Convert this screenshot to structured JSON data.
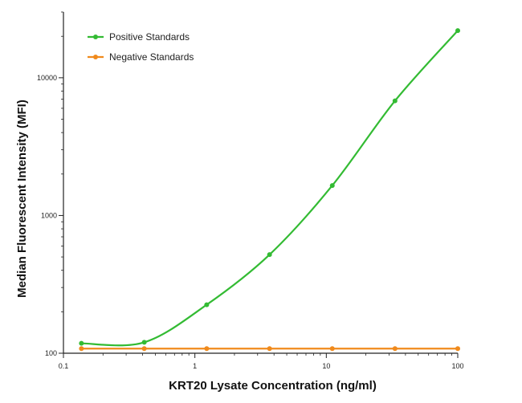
{
  "chart_data": {
    "type": "line",
    "title": "",
    "xlabel": "KRT20 Lysate Concentration (ng/ml)",
    "ylabel": "Median  Fluorescent Intensity  (MFI)",
    "x_scale": "log",
    "y_scale": "log",
    "xlim": [
      0.1,
      100
    ],
    "ylim": [
      100,
      30000
    ],
    "x_ticks": [
      0.1,
      1,
      10,
      100
    ],
    "x_tick_labels": [
      "0.1",
      "1",
      "10",
      "100"
    ],
    "y_ticks": [
      100,
      1000,
      10000
    ],
    "y_tick_labels": [
      "100",
      "1000",
      "10000"
    ],
    "grid": false,
    "legend_position": "top-left",
    "series": [
      {
        "name": "Positive Standards",
        "color": "#33bb33",
        "x": [
          0.137,
          0.412,
          1.23,
          3.7,
          11.1,
          33.3,
          100
        ],
        "y": [
          118,
          120,
          225,
          520,
          1650,
          6800,
          22000
        ],
        "fit": "sigmoid"
      },
      {
        "name": "Negative Standards",
        "color": "#f08a1c",
        "x": [
          0.137,
          0.412,
          1.23,
          3.7,
          11.1,
          33.3,
          100
        ],
        "y": [
          108,
          108,
          108,
          108,
          108,
          108,
          108
        ],
        "fit": "line"
      }
    ]
  }
}
